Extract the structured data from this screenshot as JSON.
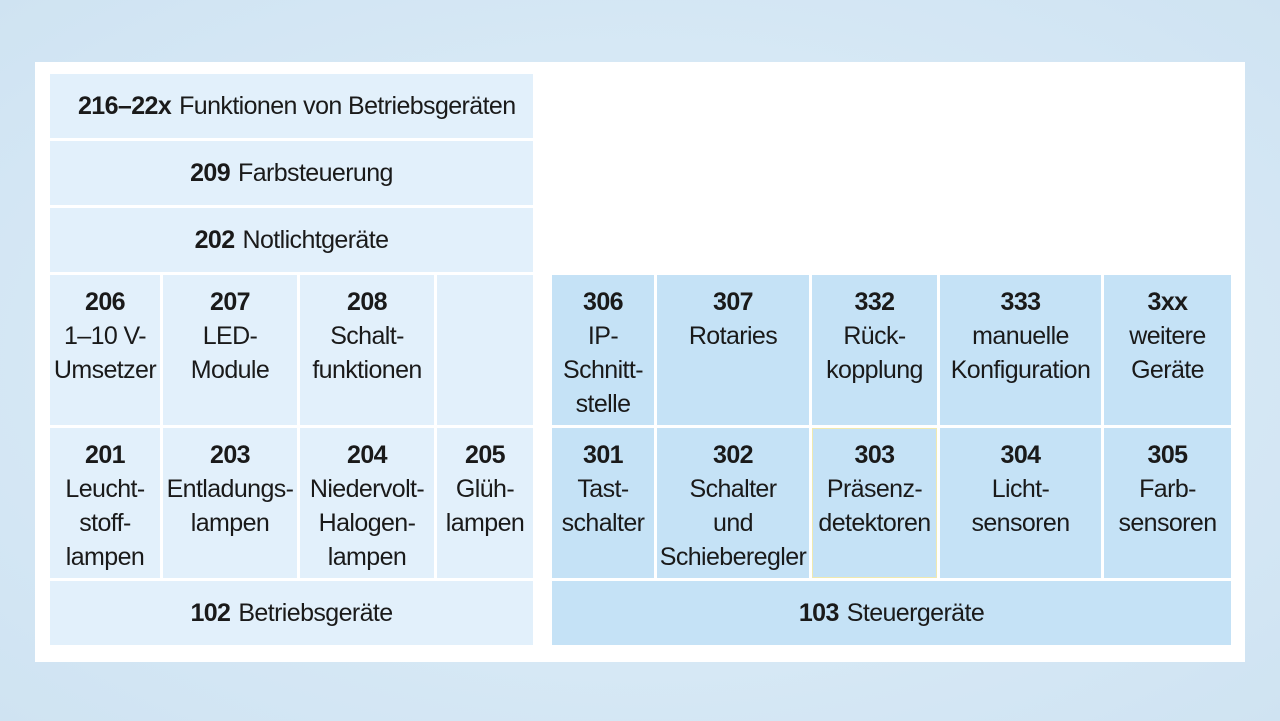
{
  "headers": {
    "c216": {
      "num": "216–22x",
      "label": "Funktionen von Betriebsgeräten"
    },
    "c209": {
      "num": "209",
      "label": "Farbsteuerung"
    },
    "c202": {
      "num": "202",
      "label": "Notlichtgeräte"
    }
  },
  "row1_left": [
    {
      "num": "206",
      "lines": [
        "1–10 V-",
        "Umsetzer"
      ]
    },
    {
      "num": "207",
      "lines": [
        "LED-",
        "Module"
      ]
    },
    {
      "num": "208",
      "lines": [
        "Schalt-",
        "funktionen"
      ]
    }
  ],
  "row1_right": [
    {
      "num": "306",
      "lines": [
        "IP-",
        "Schnitt-",
        "stelle"
      ]
    },
    {
      "num": "307",
      "lines": [
        "Rotaries"
      ]
    },
    {
      "num": "332",
      "lines": [
        "Rück-",
        "kopplung"
      ]
    },
    {
      "num": "333",
      "lines": [
        "manuelle",
        "Konfiguration"
      ]
    },
    {
      "num": "3xx",
      "lines": [
        "weitere",
        "Geräte"
      ]
    }
  ],
  "row2_left": [
    {
      "num": "201",
      "lines": [
        "Leucht-",
        "stoff-",
        "lampen"
      ]
    },
    {
      "num": "203",
      "lines": [
        "Entladungs-",
        "lampen"
      ]
    },
    {
      "num": "204",
      "lines": [
        "Niedervolt-",
        "Halogen-",
        "lampen"
      ]
    },
    {
      "num": "205",
      "lines": [
        "Glüh-",
        "lampen"
      ]
    }
  ],
  "row2_right": [
    {
      "num": "301",
      "lines": [
        "Tast-",
        "schalter"
      ]
    },
    {
      "num": "302",
      "lines": [
        "Schalter",
        "und",
        "Schieberegler"
      ]
    },
    {
      "num": "303",
      "lines": [
        "Präsenz-",
        "detektoren"
      ]
    },
    {
      "num": "304",
      "lines": [
        "Licht-",
        "sensoren"
      ]
    },
    {
      "num": "305",
      "lines": [
        "Farb-",
        "sensoren"
      ]
    }
  ],
  "bottom": {
    "c102": {
      "num": "102",
      "label": "Betriebsgeräte"
    },
    "c103": {
      "num": "103",
      "label": "Steuergeräte"
    }
  },
  "colors": {
    "left_fill": "#e2f0fb",
    "right_fill": "#c5e2f6",
    "background": "#d6e8f5"
  }
}
